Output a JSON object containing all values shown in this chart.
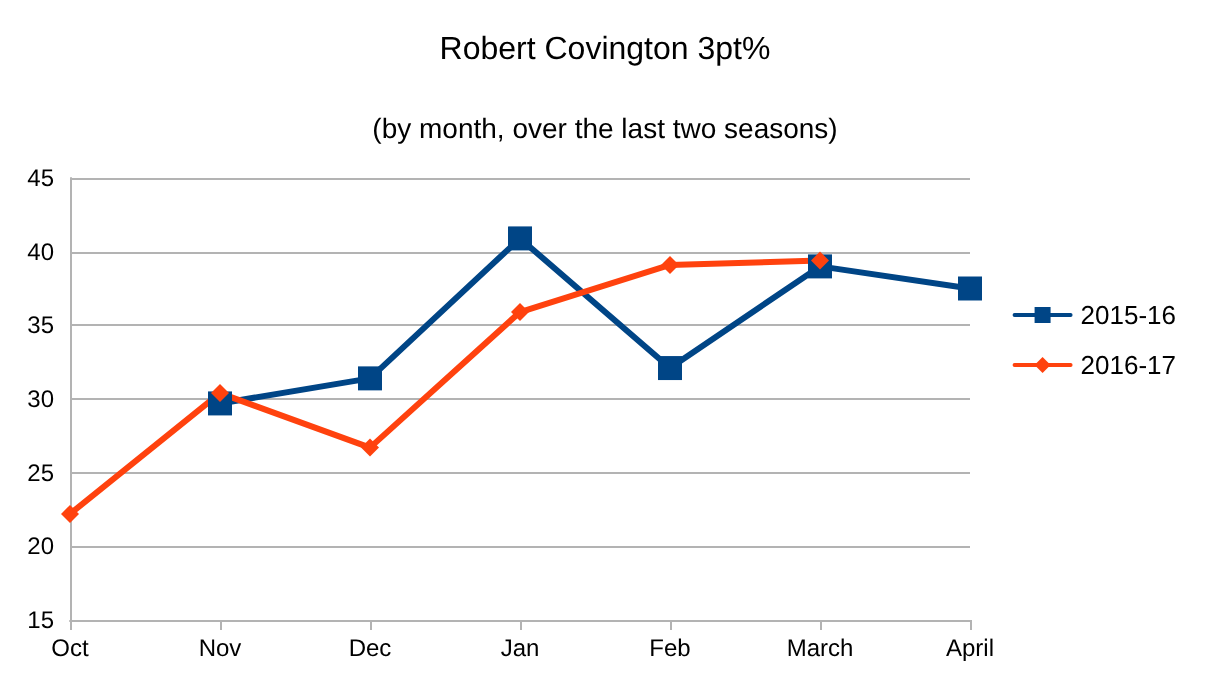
{
  "chart_data": {
    "type": "line",
    "title": "Robert Covington 3pt%",
    "subtitle": "(by month, over the last two seasons)",
    "categories": [
      "Oct",
      "Nov",
      "Dec",
      "Jan",
      "Feb",
      "March",
      "April"
    ],
    "series": [
      {
        "name": "2015-16",
        "color": "#004586",
        "marker": "square",
        "values": [
          null,
          29.7,
          31.4,
          40.9,
          32.1,
          39.0,
          37.5
        ]
      },
      {
        "name": "2016-17",
        "color": "#ff420e",
        "marker": "diamond",
        "values": [
          22.2,
          30.4,
          26.7,
          35.9,
          39.1,
          39.4,
          null
        ]
      }
    ],
    "ylim": [
      15,
      45
    ],
    "yticks": [
      15,
      20,
      25,
      30,
      35,
      40,
      45
    ],
    "grid": "y",
    "legend": "right",
    "line_style": "solid"
  }
}
